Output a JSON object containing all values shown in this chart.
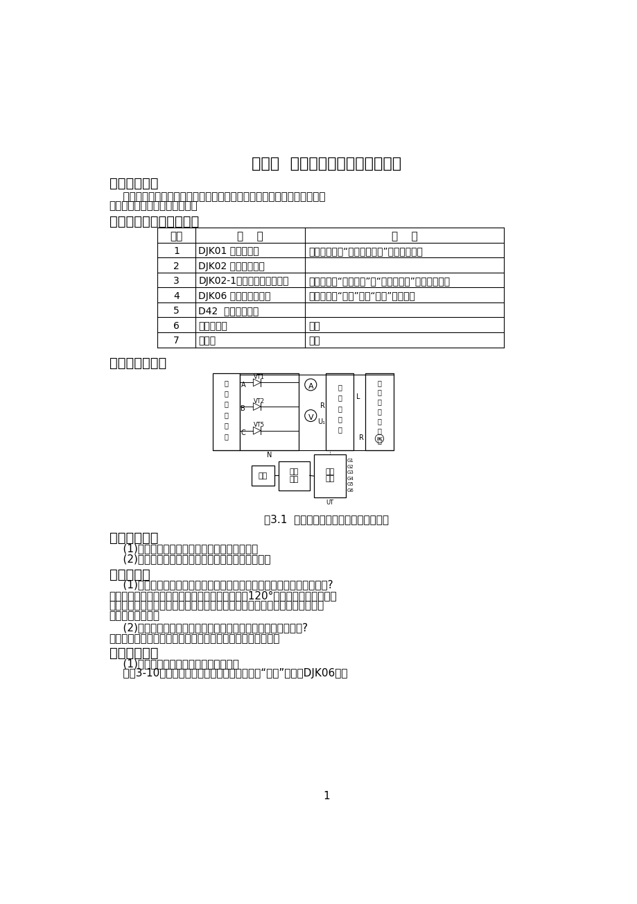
{
  "title": "实验一  三相半波可控整流电路实验",
  "section1_title": "一、实验目的",
  "section1_line1": "    了解三相半波可控整流电路的工作原理，研究可控整流电路在电阵负载和",
  "section1_line2": "电阵电感性负载时的工作情况。",
  "section2_title": "二、实验所需挂件及附件",
  "table_headers": [
    "序号",
    "型    号",
    "备    注"
  ],
  "table_rows": [
    [
      "1",
      "DJK01 电源控制屏",
      "该控制屏包含“三相电源输出”等几个模块。"
    ],
    [
      "2",
      "DJK02 晶闸管主电路",
      ""
    ],
    [
      "3",
      "DJK02-1三相晶闸管触发电路",
      "该挂件包含“触发电路”，“正反桥功放”等几个模块。"
    ],
    [
      "4",
      "DJK06 给定及实验器件",
      "该挂件包含“给定”以及“开关”等模块。"
    ],
    [
      "5",
      "D42  三相可调电阵",
      ""
    ],
    [
      "6",
      "双踪示波器",
      "自备"
    ],
    [
      "7",
      "万用表",
      "自备"
    ]
  ],
  "section3_title": "三、实验线路图",
  "fig_caption": "图3.1  三相半波可控整流电路实验原理图",
  "section4_title": "四、实验内容",
  "section4_items": [
    "    (1)研究三相半波可控整流电路带电阵性负载。",
    "    (2)研究三相半波可控整流电路带电阵电感性负载。"
  ],
  "section5_title": "五、思考题",
  "section5_q1": "    (1)如何确定三相触发脉冲的相序，主电路输出的三相相序能任意改变吗?",
  "section5_a1_line1": "答：三相触发脉冲应该与电源电压同相，每相相差120°；主电路输出的三相相",
  "section5_a1_line2": "序不能任意改变。三相触发脉冲的相序和触发脉冲的电路及主电源变压器时钟",
  "section5_a1_line3": "（钟点数）有关。",
  "section5_q2": "    (2)根据所用晶闸管的定额，如何确定整流电路的最大输出电流?",
  "section5_a2": "答：晶闸管的额定工作电流可作为整流电路的最大输出电流。",
  "section6_title": "六、实验结果",
  "section6_line1": "    (1)三相半波可控整流电路带电阵性负载",
  "section6_line2": "    按图3-10接线，将电阵放在最大阵值处，按下“启动”按钟，DJK06上的",
  "page_number": "1",
  "bg_color": "#ffffff",
  "text_color": "#000000"
}
